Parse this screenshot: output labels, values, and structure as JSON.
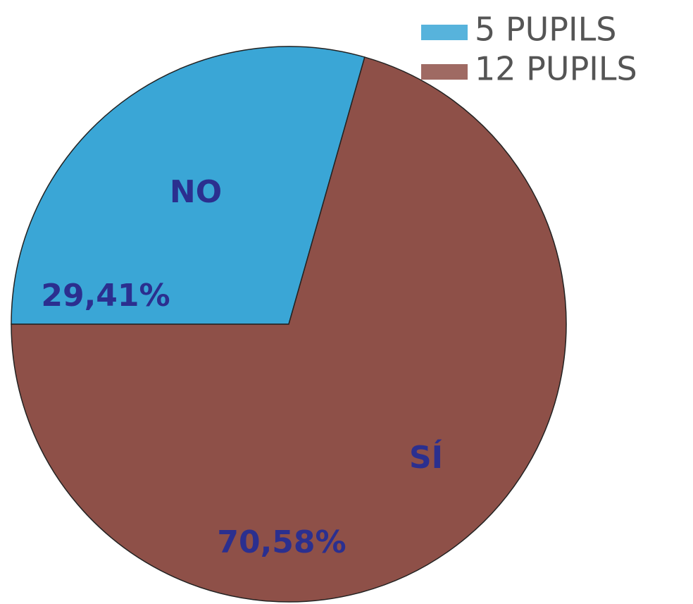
{
  "chart_data": {
    "type": "pie",
    "categories": [
      "NO",
      "SÍ"
    ],
    "values": [
      29.41,
      70.58
    ],
    "value_labels": [
      "29,41%",
      "70,58%"
    ],
    "colors": [
      "#3aa6d6",
      "#8e5048"
    ],
    "legend": [
      "5 PUPILS",
      "12 PUPILS"
    ]
  }
}
